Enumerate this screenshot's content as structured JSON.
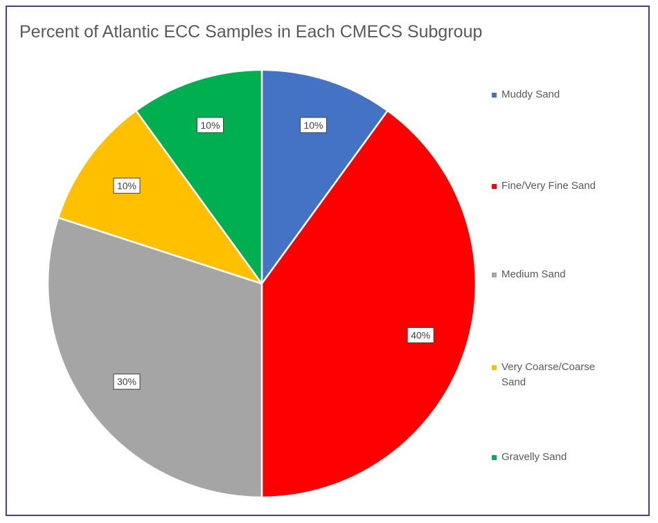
{
  "chart_data": {
    "type": "pie",
    "title": "Percent of Atlantic ECC Samples in Each CMECS Subgroup",
    "slices": [
      {
        "label": "Muddy Sand",
        "value": 10,
        "data_label": "10%",
        "color": "#4472C4"
      },
      {
        "label": "Fine/Very Fine Sand",
        "value": 40,
        "data_label": "40%",
        "color": "#FF0000"
      },
      {
        "label": "Medium Sand",
        "value": 30,
        "data_label": "30%",
        "color": "#A5A5A5"
      },
      {
        "label": "Very Coarse/Coarse Sand",
        "value": 10,
        "data_label": "10%",
        "color": "#FFC000"
      },
      {
        "label": "Gravelly Sand",
        "value": 10,
        "data_label": "10%",
        "color": "#00B050"
      }
    ],
    "legend_position": "right",
    "start_angle": "12 o'clock, clockwise"
  },
  "colors": {
    "frame_border": "#4b3a8e",
    "text": "#595959"
  }
}
